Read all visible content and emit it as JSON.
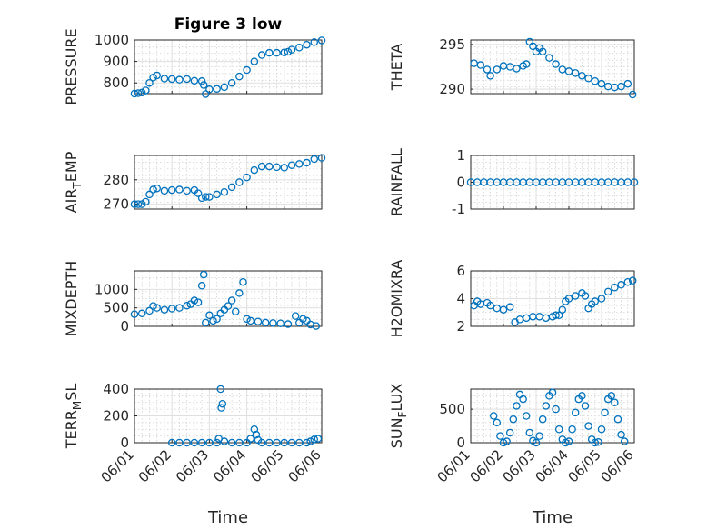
{
  "figure": {
    "xlabel": "Time"
  },
  "colors": {
    "marker": "#0072BD",
    "axis": "#262626",
    "grid": "#dfdfdf"
  },
  "chart_data": [
    {
      "type": "scatter",
      "id": "pressure",
      "title": "Figure 3 low",
      "ylabel": "PRESSURE",
      "ylim": [
        750,
        1000
      ],
      "yticks": [
        800,
        900,
        1000
      ],
      "xlim": [
        0,
        5
      ],
      "xticks": [],
      "xticklabels": [],
      "points": [
        [
          0,
          750
        ],
        [
          0.1,
          752
        ],
        [
          0.2,
          755
        ],
        [
          0.3,
          765
        ],
        [
          0.4,
          800
        ],
        [
          0.5,
          825
        ],
        [
          0.6,
          835
        ],
        [
          0.8,
          820
        ],
        [
          1.0,
          818
        ],
        [
          1.2,
          815
        ],
        [
          1.4,
          818
        ],
        [
          1.6,
          810
        ],
        [
          1.8,
          808
        ],
        [
          1.85,
          790
        ],
        [
          1.9,
          748
        ],
        [
          2.0,
          770
        ],
        [
          2.2,
          772
        ],
        [
          2.4,
          780
        ],
        [
          2.6,
          800
        ],
        [
          2.8,
          830
        ],
        [
          3.0,
          860
        ],
        [
          3.2,
          900
        ],
        [
          3.4,
          930
        ],
        [
          3.6,
          940
        ],
        [
          3.8,
          940
        ],
        [
          4.0,
          942
        ],
        [
          4.1,
          945
        ],
        [
          4.2,
          955
        ],
        [
          4.4,
          965
        ],
        [
          4.6,
          978
        ],
        [
          4.8,
          990
        ],
        [
          5.0,
          998
        ]
      ]
    },
    {
      "type": "scatter",
      "id": "theta",
      "title": "",
      "ylabel": "THETA",
      "ylim": [
        289.5,
        295.5
      ],
      "yticks": [
        290,
        295
      ],
      "xlim": [
        0,
        5
      ],
      "xticks": [],
      "xticklabels": [],
      "points": [
        [
          0.1,
          292.9
        ],
        [
          0.3,
          292.7
        ],
        [
          0.5,
          292.2
        ],
        [
          0.6,
          291.5
        ],
        [
          0.8,
          292.2
        ],
        [
          1.0,
          292.6
        ],
        [
          1.2,
          292.5
        ],
        [
          1.4,
          292.3
        ],
        [
          1.6,
          292.6
        ],
        [
          1.7,
          292.8
        ],
        [
          1.8,
          295.3
        ],
        [
          1.9,
          294.8
        ],
        [
          2.0,
          294.2
        ],
        [
          2.1,
          294.6
        ],
        [
          2.2,
          294.2
        ],
        [
          2.4,
          293.5
        ],
        [
          2.6,
          292.8
        ],
        [
          2.8,
          292.2
        ],
        [
          3.0,
          292.0
        ],
        [
          3.2,
          291.8
        ],
        [
          3.4,
          291.5
        ],
        [
          3.6,
          291.2
        ],
        [
          3.8,
          290.9
        ],
        [
          4.0,
          290.6
        ],
        [
          4.2,
          290.3
        ],
        [
          4.4,
          290.2
        ],
        [
          4.6,
          290.3
        ],
        [
          4.8,
          290.6
        ],
        [
          4.95,
          289.4
        ]
      ]
    },
    {
      "type": "scatter",
      "id": "air_temp",
      "title": "",
      "ylabel": "AIR_TEMP",
      "ylabel_main": "AIR",
      "ylabel_sub": "T",
      "ylabel_rest": "EMP",
      "ylim": [
        268,
        290
      ],
      "yticks": [
        270,
        280
      ],
      "xlim": [
        0,
        5
      ],
      "xticks": [],
      "xticklabels": [],
      "points": [
        [
          0,
          270
        ],
        [
          0.1,
          270
        ],
        [
          0.2,
          270
        ],
        [
          0.3,
          271
        ],
        [
          0.4,
          274
        ],
        [
          0.5,
          276
        ],
        [
          0.6,
          276.5
        ],
        [
          0.8,
          275.5
        ],
        [
          1.0,
          275.8
        ],
        [
          1.2,
          276
        ],
        [
          1.4,
          275.5
        ],
        [
          1.6,
          275.8
        ],
        [
          1.7,
          274.5
        ],
        [
          1.8,
          272.5
        ],
        [
          1.9,
          273
        ],
        [
          2.0,
          273
        ],
        [
          2.2,
          274
        ],
        [
          2.4,
          275
        ],
        [
          2.6,
          277
        ],
        [
          2.8,
          279
        ],
        [
          3.0,
          281
        ],
        [
          3.2,
          284
        ],
        [
          3.4,
          285.5
        ],
        [
          3.6,
          285.5
        ],
        [
          3.8,
          285.2
        ],
        [
          4.0,
          285
        ],
        [
          4.2,
          286
        ],
        [
          4.4,
          286.5
        ],
        [
          4.6,
          287
        ],
        [
          4.8,
          288.5
        ],
        [
          5.0,
          289
        ]
      ]
    },
    {
      "type": "scatter",
      "id": "rainfall",
      "title": "",
      "ylabel": "RAINFALL",
      "ylim": [
        -1,
        1
      ],
      "yticks": [
        -1,
        0,
        1
      ],
      "xlim": [
        0,
        5
      ],
      "xticks": [],
      "xticklabels": [],
      "points": [
        [
          0,
          0
        ],
        [
          0.2,
          0
        ],
        [
          0.4,
          0
        ],
        [
          0.6,
          0
        ],
        [
          0.8,
          0
        ],
        [
          1.0,
          0
        ],
        [
          1.2,
          0
        ],
        [
          1.4,
          0
        ],
        [
          1.6,
          0
        ],
        [
          1.8,
          0
        ],
        [
          2.0,
          0
        ],
        [
          2.2,
          0
        ],
        [
          2.4,
          0
        ],
        [
          2.6,
          0
        ],
        [
          2.8,
          0
        ],
        [
          3.0,
          0
        ],
        [
          3.2,
          0
        ],
        [
          3.4,
          0
        ],
        [
          3.6,
          0
        ],
        [
          3.8,
          0
        ],
        [
          4.0,
          0
        ],
        [
          4.2,
          0
        ],
        [
          4.4,
          0
        ],
        [
          4.6,
          0
        ],
        [
          4.8,
          0
        ],
        [
          5.0,
          0
        ]
      ]
    },
    {
      "type": "scatter",
      "id": "mixdepth",
      "title": "",
      "ylabel": "MIXDEPTH",
      "ylim": [
        0,
        1500
      ],
      "yticks": [
        0,
        500,
        1000
      ],
      "xlim": [
        0,
        5
      ],
      "xticks": [],
      "xticklabels": [],
      "points": [
        [
          0,
          330
        ],
        [
          0.2,
          350
        ],
        [
          0.4,
          420
        ],
        [
          0.5,
          550
        ],
        [
          0.6,
          500
        ],
        [
          0.8,
          450
        ],
        [
          1.0,
          480
        ],
        [
          1.2,
          500
        ],
        [
          1.4,
          560
        ],
        [
          1.5,
          600
        ],
        [
          1.6,
          700
        ],
        [
          1.7,
          650
        ],
        [
          1.8,
          1100
        ],
        [
          1.85,
          1400
        ],
        [
          1.9,
          100
        ],
        [
          2.0,
          300
        ],
        [
          2.1,
          150
        ],
        [
          2.2,
          200
        ],
        [
          2.3,
          350
        ],
        [
          2.4,
          450
        ],
        [
          2.5,
          550
        ],
        [
          2.6,
          700
        ],
        [
          2.7,
          400
        ],
        [
          2.8,
          900
        ],
        [
          2.9,
          1200
        ],
        [
          3.0,
          200
        ],
        [
          3.1,
          150
        ],
        [
          3.3,
          130
        ],
        [
          3.5,
          100
        ],
        [
          3.7,
          90
        ],
        [
          3.9,
          80
        ],
        [
          4.1,
          60
        ],
        [
          4.3,
          280
        ],
        [
          4.4,
          100
        ],
        [
          4.5,
          200
        ],
        [
          4.6,
          150
        ],
        [
          4.7,
          50
        ],
        [
          4.85,
          10
        ]
      ]
    },
    {
      "type": "scatter",
      "id": "h2omixra",
      "title": "",
      "ylabel": "H2OMIXRA",
      "ylim": [
        2,
        6
      ],
      "yticks": [
        2,
        4,
        6
      ],
      "xlim": [
        0,
        5
      ],
      "xticks": [],
      "xticklabels": [],
      "points": [
        [
          0.1,
          3.5
        ],
        [
          0.2,
          3.8
        ],
        [
          0.3,
          3.6
        ],
        [
          0.5,
          3.7
        ],
        [
          0.6,
          3.5
        ],
        [
          0.8,
          3.3
        ],
        [
          1.0,
          3.2
        ],
        [
          1.2,
          3.4
        ],
        [
          1.35,
          2.3
        ],
        [
          1.5,
          2.5
        ],
        [
          1.7,
          2.6
        ],
        [
          1.9,
          2.7
        ],
        [
          2.1,
          2.7
        ],
        [
          2.3,
          2.6
        ],
        [
          2.5,
          2.7
        ],
        [
          2.6,
          2.8
        ],
        [
          2.7,
          2.8
        ],
        [
          2.8,
          3.2
        ],
        [
          2.9,
          3.8
        ],
        [
          3.0,
          4.0
        ],
        [
          3.2,
          4.2
        ],
        [
          3.4,
          4.4
        ],
        [
          3.5,
          4.2
        ],
        [
          3.6,
          3.3
        ],
        [
          3.7,
          3.6
        ],
        [
          3.8,
          3.8
        ],
        [
          4.0,
          4.0
        ],
        [
          4.2,
          4.5
        ],
        [
          4.4,
          4.8
        ],
        [
          4.6,
          5.0
        ],
        [
          4.8,
          5.2
        ],
        [
          4.95,
          5.3
        ]
      ]
    },
    {
      "type": "scatter",
      "id": "terr_msl",
      "title": "",
      "ylabel": "TERR_MSL",
      "ylabel_main": "TERR",
      "ylabel_sub": "M",
      "ylabel_rest": "SL",
      "ylim": [
        0,
        400
      ],
      "yticks": [
        0,
        200,
        400
      ],
      "xlim": [
        0,
        5
      ],
      "xticks": [
        0,
        1,
        2,
        3,
        4,
        5
      ],
      "xticklabels": [
        "06/01",
        "06/02",
        "06/03",
        "06/04",
        "06/05",
        "06/06"
      ],
      "points": [
        [
          1.0,
          0
        ],
        [
          1.2,
          0
        ],
        [
          1.4,
          0
        ],
        [
          1.6,
          0
        ],
        [
          1.8,
          0
        ],
        [
          2.0,
          0
        ],
        [
          2.2,
          0
        ],
        [
          2.25,
          30
        ],
        [
          2.3,
          400
        ],
        [
          2.32,
          260
        ],
        [
          2.35,
          290
        ],
        [
          2.4,
          10
        ],
        [
          2.6,
          0
        ],
        [
          2.8,
          0
        ],
        [
          3.0,
          0
        ],
        [
          3.1,
          30
        ],
        [
          3.2,
          100
        ],
        [
          3.25,
          60
        ],
        [
          3.3,
          20
        ],
        [
          3.4,
          0
        ],
        [
          3.6,
          0
        ],
        [
          3.8,
          0
        ],
        [
          4.0,
          0
        ],
        [
          4.2,
          0
        ],
        [
          4.4,
          0
        ],
        [
          4.6,
          0
        ],
        [
          4.7,
          10
        ],
        [
          4.8,
          25
        ],
        [
          4.9,
          30
        ]
      ]
    },
    {
      "type": "scatter",
      "id": "sun_flux",
      "title": "",
      "ylabel": "SUN_FLUX",
      "ylabel_main": "SUN",
      "ylabel_sub": "F",
      "ylabel_rest": "LUX",
      "ylim": [
        0,
        800
      ],
      "yticks": [
        0,
        500
      ],
      "xlim": [
        0,
        5
      ],
      "xticks": [
        0,
        1,
        2,
        3,
        4,
        5
      ],
      "xticklabels": [
        "06/01",
        "06/02",
        "06/03",
        "06/04",
        "06/05",
        "06/06"
      ],
      "points": [
        [
          0.7,
          400
        ],
        [
          0.8,
          300
        ],
        [
          0.9,
          100
        ],
        [
          1.0,
          0
        ],
        [
          1.1,
          20
        ],
        [
          1.2,
          150
        ],
        [
          1.3,
          350
        ],
        [
          1.4,
          550
        ],
        [
          1.5,
          720
        ],
        [
          1.6,
          650
        ],
        [
          1.7,
          400
        ],
        [
          1.8,
          150
        ],
        [
          1.9,
          30
        ],
        [
          2.0,
          0
        ],
        [
          2.1,
          100
        ],
        [
          2.2,
          350
        ],
        [
          2.3,
          550
        ],
        [
          2.4,
          700
        ],
        [
          2.5,
          750
        ],
        [
          2.6,
          500
        ],
        [
          2.7,
          200
        ],
        [
          2.8,
          50
        ],
        [
          2.9,
          0
        ],
        [
          3.0,
          20
        ],
        [
          3.1,
          200
        ],
        [
          3.2,
          450
        ],
        [
          3.3,
          650
        ],
        [
          3.4,
          700
        ],
        [
          3.5,
          550
        ],
        [
          3.6,
          250
        ],
        [
          3.7,
          50
        ],
        [
          3.8,
          0
        ],
        [
          3.9,
          10
        ],
        [
          4.0,
          200
        ],
        [
          4.1,
          450
        ],
        [
          4.2,
          650
        ],
        [
          4.3,
          700
        ],
        [
          4.4,
          600
        ],
        [
          4.5,
          350
        ],
        [
          4.6,
          120
        ],
        [
          4.7,
          20
        ]
      ]
    }
  ]
}
